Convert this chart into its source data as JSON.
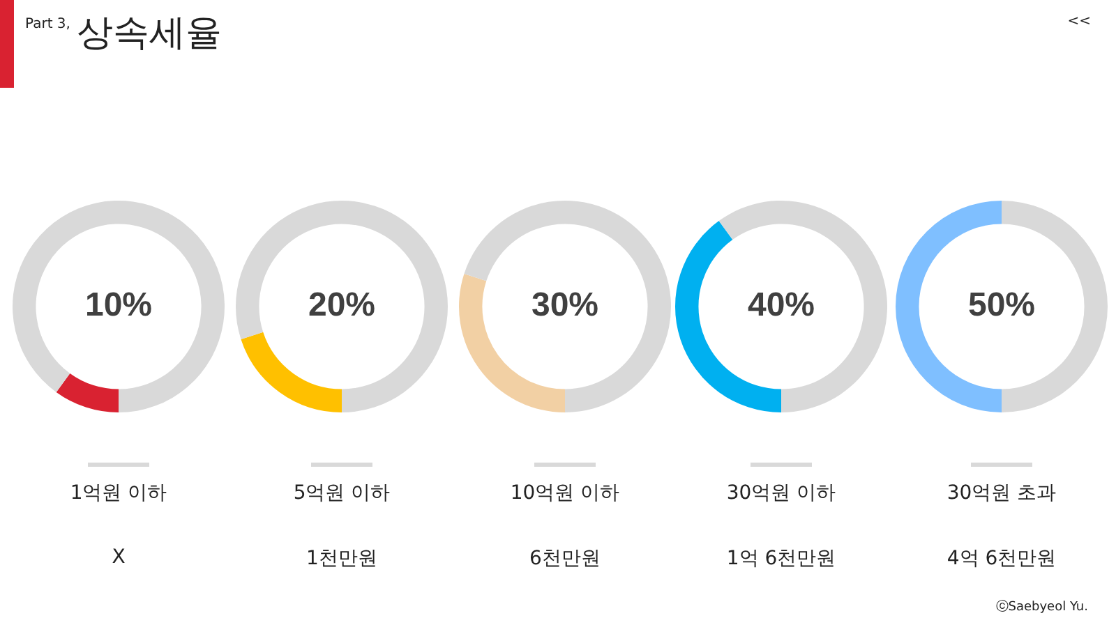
{
  "chart_data": [
    {
      "type": "donut",
      "title": "상속세율",
      "subtitle": "Part 3,",
      "categories": [
        null,
        null
      ],
      "values": [
        10,
        90
      ],
      "colors": [
        "#d92231",
        "#d9d9d9"
      ],
      "xlabel": "1억원 이하",
      "annotations": [
        "10%",
        "X",
        "<<"
      ]
    },
    {
      "type": "donut",
      "categories": [
        null,
        null
      ],
      "values": [
        20,
        80
      ],
      "colors": [
        "#ffc000",
        "#d9d9d9"
      ],
      "xlabel": "5억원 이하",
      "annotations": [
        "20%",
        "1천만원"
      ]
    },
    {
      "type": "donut",
      "categories": [
        null,
        null
      ],
      "values": [
        30,
        70
      ],
      "colors": [
        "#f2d0a4",
        "#d9d9d9"
      ],
      "xlabel": "10억원 이하",
      "annotations": [
        "30%",
        "6천만원"
      ]
    },
    {
      "type": "donut",
      "categories": [
        null,
        null
      ],
      "values": [
        40,
        60
      ],
      "colors": [
        "#00b0f0",
        "#d9d9d9"
      ],
      "xlabel": "30억원 이하",
      "annotations": [
        "40%",
        "1억 6천만원"
      ]
    },
    {
      "type": "donut",
      "categories": [
        null,
        null
      ],
      "values": [
        50,
        50
      ],
      "colors": [
        "#7fbfff",
        "#d9d9d9"
      ],
      "xlabel": "30억원 초과",
      "annotations": [
        "50%",
        "4억 6천만원",
        "ⓒSaebyeol Yu."
      ]
    }
  ]
}
